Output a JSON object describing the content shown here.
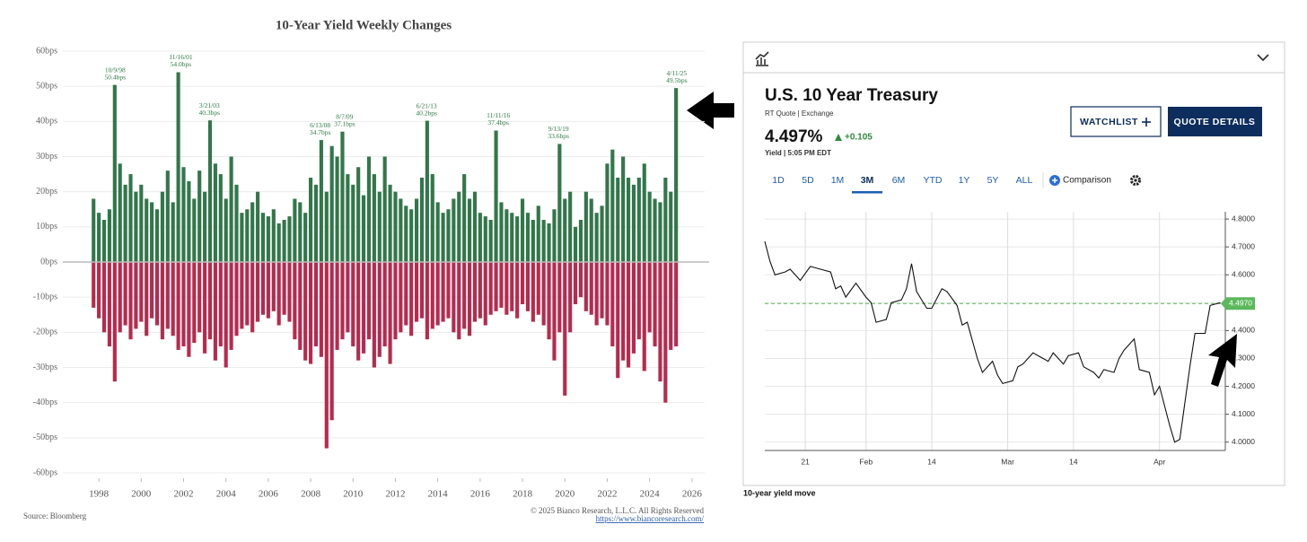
{
  "chart_data": [
    {
      "type": "bar",
      "title": "10-Year Yield Weekly Changes",
      "x": [
        1997.75,
        1998,
        1998.25,
        1998.5,
        1998.75,
        1999,
        1999.25,
        1999.5,
        1999.75,
        2000,
        2000.25,
        2000.5,
        2000.75,
        2001,
        2001.25,
        2001.5,
        2001.75,
        2002,
        2002.25,
        2002.5,
        2002.75,
        2003,
        2003.25,
        2003.5,
        2003.75,
        2004,
        2004.25,
        2004.5,
        2004.75,
        2005,
        2005.25,
        2005.5,
        2005.75,
        2006,
        2006.25,
        2006.5,
        2006.75,
        2007,
        2007.25,
        2007.5,
        2007.75,
        2008,
        2008.25,
        2008.5,
        2008.75,
        2009,
        2009.25,
        2009.5,
        2009.75,
        2010,
        2010.25,
        2010.5,
        2010.75,
        2011,
        2011.25,
        2011.5,
        2011.75,
        2012,
        2012.25,
        2012.5,
        2012.75,
        2013,
        2013.25,
        2013.5,
        2013.75,
        2014,
        2014.25,
        2014.5,
        2014.75,
        2015,
        2015.25,
        2015.5,
        2015.75,
        2016,
        2016.25,
        2016.5,
        2016.75,
        2017,
        2017.25,
        2017.5,
        2017.75,
        2018,
        2018.25,
        2018.5,
        2018.75,
        2019,
        2019.25,
        2019.5,
        2019.75,
        2020,
        2020.25,
        2020.5,
        2020.75,
        2021,
        2021.25,
        2021.5,
        2021.75,
        2022,
        2022.25,
        2022.5,
        2022.75,
        2023,
        2023.25,
        2023.5,
        2023.75,
        2024,
        2024.25,
        2024.5,
        2024.75,
        2025,
        2025.25
      ],
      "series": [
        {
          "color": "#216b3b",
          "values": [
            18,
            14,
            12,
            15,
            50.4,
            28,
            22,
            25,
            20,
            22,
            18,
            17,
            15,
            20,
            26,
            17,
            54,
            27,
            23,
            18,
            26,
            20,
            40.3,
            28,
            25,
            18,
            30,
            22,
            14,
            15,
            17,
            20,
            14,
            13,
            15,
            11,
            12,
            13,
            18,
            17,
            14,
            24,
            22,
            34.7,
            20,
            33,
            30,
            37.1,
            25,
            22,
            27,
            19,
            30,
            25,
            20,
            30,
            22,
            20,
            18,
            16,
            15,
            18,
            24,
            40.2,
            25,
            17,
            14,
            15,
            18,
            20,
            25,
            18,
            20,
            14,
            13,
            12,
            37.4,
            17,
            15,
            14,
            13,
            18,
            14,
            12,
            16,
            12,
            11,
            15,
            33.6,
            18,
            20,
            10,
            12,
            20,
            18,
            14,
            16,
            28,
            32,
            24,
            30,
            24,
            22,
            24,
            28,
            20,
            18,
            17,
            24,
            20,
            49.5
          ]
        },
        {
          "color": "#b3173f",
          "values": [
            -13,
            -16,
            -20,
            -24,
            -34,
            -20,
            -18,
            -22,
            -19,
            -17,
            -21,
            -16,
            -18,
            -22,
            -19,
            -21,
            -25,
            -24,
            -27,
            -23,
            -20,
            -26,
            -22,
            -28,
            -24,
            -30,
            -25,
            -21,
            -19,
            -18,
            -20,
            -17,
            -15,
            -16,
            -14,
            -18,
            -15,
            -17,
            -22,
            -25,
            -28,
            -29,
            -24,
            -27,
            -53,
            -45,
            -25,
            -22,
            -20,
            -24,
            -28,
            -26,
            -22,
            -30,
            -27,
            -24,
            -29,
            -22,
            -20,
            -18,
            -21,
            -17,
            -16,
            -22,
            -19,
            -18,
            -17,
            -16,
            -20,
            -22,
            -19,
            -21,
            -17,
            -16,
            -18,
            -15,
            -14,
            -13,
            -15,
            -14,
            -16,
            -12,
            -14,
            -17,
            -15,
            -18,
            -22,
            -28,
            -20,
            -38,
            -20,
            -12,
            -10,
            -14,
            -15,
            -18,
            -16,
            -18,
            -24,
            -33,
            -28,
            -30,
            -26,
            -22,
            -31,
            -20,
            -24,
            -34,
            -40,
            -25,
            -24
          ]
        }
      ],
      "annotations": [
        {
          "label": "10/9/98",
          "x": 1998.77,
          "value": 50.4,
          "value_label": "50.4bps"
        },
        {
          "label": "11/16/01",
          "x": 2001.87,
          "value": 54,
          "value_label": "54.0bps"
        },
        {
          "label": "3/21/03",
          "x": 2003.22,
          "value": 40.3,
          "value_label": "40.3bps"
        },
        {
          "label": "6/13/08",
          "x": 2008.45,
          "value": 34.7,
          "value_label": "34.7bps"
        },
        {
          "label": "8/7/09",
          "x": 2009.6,
          "value": 37.1,
          "value_label": "37.1bps"
        },
        {
          "label": "6/21/13",
          "x": 2013.47,
          "value": 40.2,
          "value_label": "40.2bps"
        },
        {
          "label": "11/11/16",
          "x": 2016.86,
          "value": 37.4,
          "value_label": "37.4bps"
        },
        {
          "label": "9/13/19",
          "x": 2019.7,
          "value": 33.6,
          "value_label": "33.6bps"
        },
        {
          "label": "4/11/25",
          "x": 2025.28,
          "value": 49.5,
          "value_label": "49.5bps"
        }
      ],
      "xlim": [
        1996.3,
        2026.6
      ],
      "xticks": [
        1998,
        2000,
        2002,
        2004,
        2006,
        2008,
        2010,
        2012,
        2014,
        2016,
        2018,
        2020,
        2022,
        2024,
        2026
      ],
      "ylim": [
        -60,
        60
      ],
      "yticks": [
        {
          "value": 60,
          "label": "60bps"
        },
        {
          "value": 50,
          "label": "50bps"
        },
        {
          "value": 40,
          "label": "40bps"
        },
        {
          "value": 30,
          "label": "30bps"
        },
        {
          "value": 20,
          "label": "20bps"
        },
        {
          "value": 10,
          "label": "10bps"
        },
        {
          "value": 0,
          "label": "0bps"
        },
        {
          "value": -10,
          "label": "-10bps"
        },
        {
          "value": -20,
          "label": "-20bps"
        },
        {
          "value": -30,
          "label": "-30bps"
        },
        {
          "value": -40,
          "label": "-40bps"
        },
        {
          "value": -50,
          "label": "-50bps"
        },
        {
          "value": -60,
          "label": "-60bps"
        }
      ],
      "grid": true,
      "source": "Source: Bloomberg",
      "copyright": "© 2025 Bianco Research, L.L.C. All Rights Reserved",
      "url": "https://www.biancoresearch.com/"
    },
    {
      "type": "line",
      "x": [
        -2,
        -1,
        0,
        2,
        3,
        5,
        7,
        9,
        11,
        12,
        13,
        14,
        16,
        18,
        19,
        20,
        22,
        23,
        25,
        26,
        27,
        28,
        30,
        31,
        33,
        34,
        36,
        37,
        38,
        40,
        41,
        43,
        44,
        45,
        47,
        48,
        49,
        51,
        52,
        54,
        55,
        57,
        58,
        60,
        61,
        63,
        64,
        65,
        67,
        68,
        69,
        71,
        72,
        74,
        75,
        76,
        78,
        79,
        80,
        82,
        83,
        85,
        86,
        88
      ],
      "values": [
        4.72,
        4.65,
        4.6,
        4.61,
        4.62,
        4.58,
        4.63,
        4.62,
        4.61,
        4.55,
        4.56,
        4.52,
        4.57,
        4.52,
        4.5,
        4.43,
        4.44,
        4.5,
        4.51,
        4.55,
        4.64,
        4.54,
        4.48,
        4.48,
        4.55,
        4.54,
        4.49,
        4.42,
        4.43,
        4.3,
        4.25,
        4.29,
        4.24,
        4.21,
        4.22,
        4.27,
        4.28,
        4.32,
        4.31,
        4.29,
        4.32,
        4.28,
        4.31,
        4.32,
        4.27,
        4.25,
        4.23,
        4.26,
        4.25,
        4.3,
        4.33,
        4.37,
        4.26,
        4.25,
        4.17,
        4.2,
        4.06,
        4.0,
        4.01,
        4.27,
        4.39,
        4.39,
        4.49,
        4.5
      ],
      "color": "#111111",
      "xlim": [
        -2,
        89
      ],
      "xticks": [
        {
          "value": 6,
          "label": "21"
        },
        {
          "value": 18,
          "label": "Feb"
        },
        {
          "value": 31,
          "label": "14"
        },
        {
          "value": 46,
          "label": "Mar"
        },
        {
          "value": 59,
          "label": "14"
        },
        {
          "value": 76,
          "label": "Apr"
        }
      ],
      "ylim": [
        3.97,
        4.81
      ],
      "yticks": [
        {
          "value": 4,
          "label": "4.0000"
        },
        {
          "value": 4.1,
          "label": "4.1000"
        },
        {
          "value": 4.2,
          "label": "4.2000"
        },
        {
          "value": 4.3,
          "label": "4.3000"
        },
        {
          "value": 4.4,
          "label": "4.4000"
        },
        {
          "value": 4.5,
          "label": "4.5000"
        },
        {
          "value": 4.6,
          "label": "4.6000"
        },
        {
          "value": 4.7,
          "label": "4.7000"
        },
        {
          "value": 4.8,
          "label": "4.8000"
        }
      ],
      "grid": true,
      "reference_line": {
        "value": 4.497,
        "label": "4.4970",
        "color": "#5cb85c"
      }
    }
  ],
  "quote": {
    "title": "U.S. 10 Year Treasury",
    "source": "RT Quote | Exchange",
    "last": "4.497%",
    "change": "+0.105",
    "time": "Yield | 5:05 PM EDT",
    "buttons": [
      "WATCHLIST",
      "QUOTE DETAILS"
    ],
    "ranges": [
      "1D",
      "5D",
      "1M",
      "3M",
      "6M",
      "YTD",
      "1Y",
      "5Y",
      "ALL"
    ],
    "selected_range": 3,
    "comparison": "Comparison"
  },
  "caption": "10-year yield move"
}
